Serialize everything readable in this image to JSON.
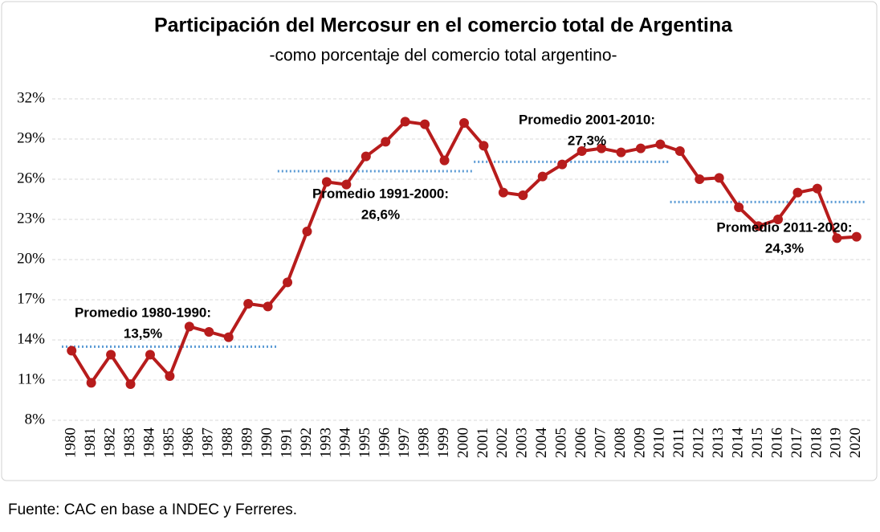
{
  "chart_data": {
    "type": "line",
    "title": "Participación del Mercosur en el comercio total de Argentina",
    "subtitle": "-como porcentaje del comercio total argentino-",
    "source": "Fuente: CAC en base a INDEC y Ferreres.",
    "categories": [
      "1980",
      "1981",
      "1982",
      "1983",
      "1984",
      "1985",
      "1986",
      "1987",
      "1988",
      "1989",
      "1990",
      "1991",
      "1992",
      "1993",
      "1994",
      "1995",
      "1996",
      "1997",
      "1998",
      "1999",
      "2000",
      "2001",
      "2002",
      "2003",
      "2004",
      "2005",
      "2006",
      "2007",
      "2008",
      "2009",
      "2010",
      "2011",
      "2012",
      "2013",
      "2014",
      "2015",
      "2016",
      "2017",
      "2018",
      "2019",
      "2020"
    ],
    "series": [
      {
        "color": "#b71c1c",
        "values": [
          13.2,
          10.8,
          12.9,
          10.7,
          12.9,
          11.3,
          15.0,
          14.6,
          14.2,
          16.7,
          16.5,
          18.3,
          22.1,
          25.8,
          25.6,
          27.7,
          28.8,
          30.3,
          30.1,
          27.4,
          30.2,
          28.5,
          25.0,
          24.8,
          26.2,
          27.1,
          28.1,
          28.3,
          28.0,
          28.3,
          28.6,
          28.1,
          26.0,
          26.1,
          23.9,
          22.5,
          23.0,
          25.0,
          25.3,
          21.6,
          21.7
        ]
      }
    ],
    "averages": [
      {
        "text": "Promedio 1980-1990:",
        "label": "13,5%",
        "value": 13.5,
        "from": "1980",
        "to": "1990"
      },
      {
        "text": "Promedio 1991-2000:",
        "label": "26,6%",
        "value": 26.6,
        "from": "1991",
        "to": "2000"
      },
      {
        "text": "Promedio 2001-2010:",
        "label": "27,3%",
        "value": 27.3,
        "from": "2001",
        "to": "2010"
      },
      {
        "text": "Promedio 2011-2020:",
        "label": "24,3%",
        "value": 24.3,
        "from": "2011",
        "to": "2020"
      }
    ],
    "average_color": "#5b9bd5",
    "ylim": [
      8,
      32
    ],
    "yticks": [
      {
        "value": 8,
        "label": "8%"
      },
      {
        "value": 11,
        "label": "11%"
      },
      {
        "value": 14,
        "label": "14%"
      },
      {
        "value": 17,
        "label": "17%"
      },
      {
        "value": 20,
        "label": "20%"
      },
      {
        "value": 23,
        "label": "23%"
      },
      {
        "value": 26,
        "label": "26%"
      },
      {
        "value": 29,
        "label": "29%"
      },
      {
        "value": 32,
        "label": "32%"
      }
    ],
    "grid": true
  }
}
